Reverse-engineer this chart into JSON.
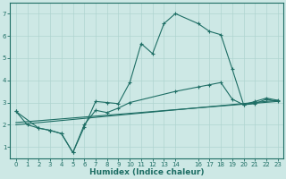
{
  "xlabel": "Humidex (Indice chaleur)",
  "background_color": "#cde8e5",
  "grid_color": "#afd4d0",
  "line_color": "#1e6e65",
  "xlim": [
    -0.5,
    23.5
  ],
  "ylim": [
    0.5,
    7.5
  ],
  "xticks": [
    0,
    1,
    2,
    3,
    4,
    5,
    6,
    7,
    8,
    9,
    10,
    11,
    12,
    13,
    14,
    16,
    17,
    18,
    19,
    20,
    21,
    22,
    23
  ],
  "yticks": [
    1,
    2,
    3,
    4,
    5,
    6,
    7
  ],
  "line1_x": [
    0,
    1,
    2,
    3,
    4,
    5,
    6,
    7,
    8,
    9,
    10,
    11,
    12,
    13,
    14,
    16,
    17,
    18,
    19,
    20,
    21,
    22,
    23
  ],
  "line1_y": [
    2.6,
    2.0,
    1.85,
    1.75,
    1.6,
    0.75,
    1.9,
    3.05,
    3.0,
    2.95,
    3.9,
    5.65,
    5.2,
    6.55,
    7.0,
    6.55,
    6.2,
    6.05,
    4.5,
    2.9,
    2.95,
    3.15,
    3.05
  ],
  "line2_x": [
    0,
    2,
    3,
    4,
    5,
    6,
    7,
    8,
    9,
    10,
    14,
    16,
    17,
    18,
    19,
    20,
    21,
    22,
    23
  ],
  "line2_y": [
    2.6,
    1.85,
    1.75,
    1.6,
    0.75,
    2.0,
    2.65,
    2.55,
    2.75,
    3.0,
    3.5,
    3.7,
    3.8,
    3.9,
    3.15,
    2.9,
    3.05,
    3.2,
    3.1
  ],
  "line3_x": [
    0,
    23
  ],
  "line3_y": [
    2.1,
    3.05
  ],
  "line4_x": [
    0,
    23
  ],
  "line4_y": [
    2.0,
    3.1
  ]
}
